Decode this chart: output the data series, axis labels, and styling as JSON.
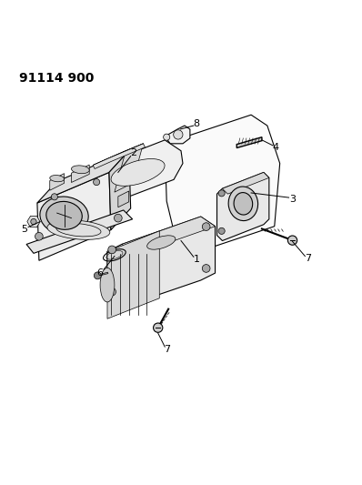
{
  "title": "91114 900",
  "bg_color": "#ffffff",
  "line_color": "#000000",
  "label_color": "#000000",
  "title_fontsize": 10,
  "label_fontsize": 8,
  "figsize": [
    3.98,
    5.33
  ],
  "dpi": 100
}
